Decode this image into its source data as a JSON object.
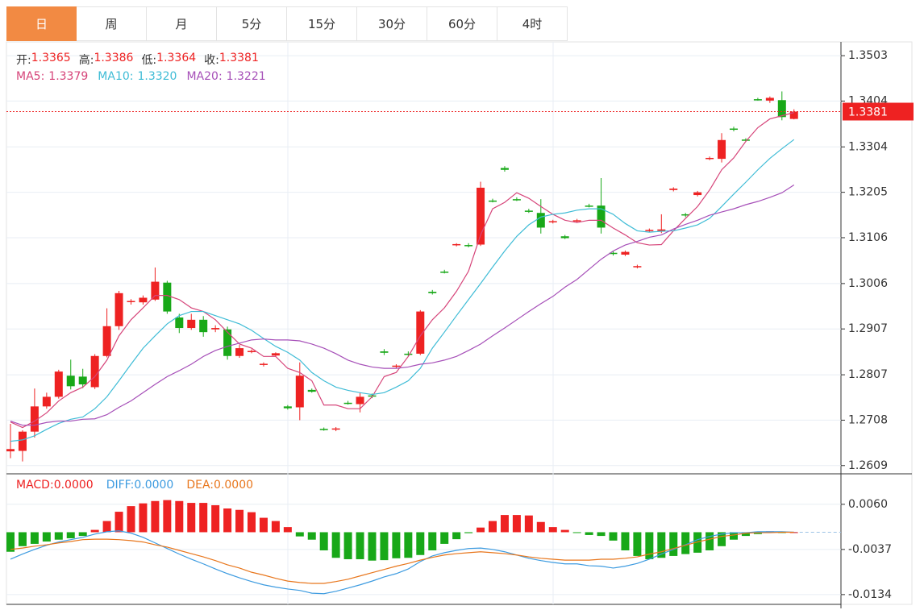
{
  "tabs": [
    "日",
    "周",
    "月",
    "5分",
    "15分",
    "30分",
    "60分",
    "4时"
  ],
  "active_tab": 0,
  "chart_data": [
    {
      "type": "candlestick",
      "quote": [
        {
          "label": "开:",
          "value": "1.3365"
        },
        {
          "label": "高:",
          "value": "1.3386"
        },
        {
          "label": "低:",
          "value": "1.3364"
        },
        {
          "label": "收:",
          "value": "1.3381"
        }
      ],
      "up_color": "#ee2222",
      "down_color": "#18a818",
      "open": [
        1.264,
        1.2641,
        1.2683,
        1.2738,
        1.2759,
        1.2805,
        1.2803,
        1.278,
        1.2848,
        1.2913,
        1.2966,
        1.2965,
        1.2971,
        1.3008,
        1.2932,
        1.2909,
        1.2927,
        1.2906,
        1.2906,
        1.2848,
        1.2857,
        1.2829,
        1.2849,
        1.2738,
        1.2736,
        1.2774,
        1.2689,
        1.2688,
        1.2746,
        1.2743,
        1.2762,
        1.2858,
        1.2826,
        1.2853,
        1.2853,
        1.2988,
        1.3032,
        1.309,
        1.309,
        1.3091,
        1.3187,
        1.3258,
        1.319,
        1.3165,
        1.316,
        1.314,
        1.3109,
        1.3142,
        1.3176,
        1.3176,
        1.3073,
        1.3069,
        1.3042,
        1.3121,
        1.3121,
        1.321,
        1.3157,
        1.3199,
        1.3278,
        1.3278,
        1.3344,
        1.332,
        1.3408,
        1.3405,
        1.3406,
        1.3365
      ],
      "high": [
        1.27,
        1.2686,
        1.2777,
        1.2768,
        1.2818,
        1.284,
        1.282,
        1.2852,
        1.2952,
        1.299,
        1.2972,
        1.298,
        1.3041,
        1.3012,
        1.294,
        1.294,
        1.2935,
        1.2915,
        1.2912,
        1.2872,
        1.2862,
        1.2834,
        1.2856,
        1.2741,
        1.2834,
        1.2777,
        1.2692,
        1.2693,
        1.275,
        1.2768,
        1.2766,
        1.2863,
        1.283,
        1.2858,
        1.2948,
        1.2992,
        1.3036,
        1.3094,
        1.3094,
        1.3228,
        1.3191,
        1.3262,
        1.3194,
        1.3169,
        1.319,
        1.3145,
        1.3112,
        1.3147,
        1.318,
        1.3236,
        1.3076,
        1.3078,
        1.3047,
        1.3126,
        1.3157,
        1.3216,
        1.316,
        1.3208,
        1.3283,
        1.3334,
        1.3348,
        1.3323,
        1.3411,
        1.3414,
        1.3425,
        1.3386
      ],
      "low": [
        1.2625,
        1.2618,
        1.267,
        1.2733,
        1.2755,
        1.2775,
        1.2778,
        1.2776,
        1.2845,
        1.2905,
        1.296,
        1.296,
        1.2968,
        1.294,
        1.2898,
        1.2905,
        1.289,
        1.29,
        1.284,
        1.2844,
        1.2854,
        1.2825,
        1.2846,
        1.2731,
        1.2708,
        1.2768,
        1.2685,
        1.2684,
        1.2742,
        1.2725,
        1.2756,
        1.285,
        1.2822,
        1.2848,
        1.285,
        1.2982,
        1.3028,
        1.3087,
        1.3085,
        1.3088,
        1.3183,
        1.325,
        1.3186,
        1.316,
        1.3115,
        1.3137,
        1.3103,
        1.3139,
        1.3172,
        1.3115,
        1.3067,
        1.3066,
        1.3039,
        1.3118,
        1.3116,
        1.3207,
        1.3151,
        1.3196,
        1.3275,
        1.327,
        1.3338,
        1.3315,
        1.3405,
        1.34,
        1.3362,
        1.3364
      ],
      "close": [
        1.2645,
        1.2683,
        1.2738,
        1.2759,
        1.2814,
        1.2782,
        1.2786,
        1.2848,
        1.2913,
        1.2985,
        1.2968,
        1.2975,
        1.301,
        1.2945,
        1.2909,
        1.2927,
        1.29,
        1.2909,
        1.2848,
        1.2865,
        1.2859,
        1.2831,
        1.2854,
        1.2734,
        1.2805,
        1.277,
        1.2687,
        1.269,
        1.2744,
        1.2759,
        1.276,
        1.2855,
        1.2827,
        1.2851,
        1.2945,
        1.2985,
        1.303,
        1.3092,
        1.3088,
        1.3215,
        1.3185,
        1.3254,
        1.3188,
        1.3163,
        1.3128,
        1.3142,
        1.3105,
        1.3144,
        1.3174,
        1.3128,
        1.3071,
        1.3075,
        1.3044,
        1.3123,
        1.3124,
        1.3213,
        1.3155,
        1.3205,
        1.328,
        1.3319,
        1.3342,
        1.3318,
        1.3406,
        1.3411,
        1.3369,
        1.3381
      ],
      "series": [
        {
          "name": "MA5:",
          "legend_value": "1.3379",
          "color": "#d6457a",
          "values": [
            1.2704,
            1.2692,
            1.2706,
            1.2724,
            1.275,
            1.2768,
            1.278,
            1.2803,
            1.2839,
            1.2892,
            1.2927,
            1.2953,
            1.298,
            1.298,
            1.2971,
            1.2953,
            1.2945,
            1.2927,
            1.29,
            1.2874,
            1.2865,
            1.2847,
            1.2847,
            1.2821,
            1.2812,
            1.2794,
            1.2741,
            1.2741,
            1.2733,
            1.2733,
            1.2759,
            1.2803,
            1.2812,
            1.2847,
            1.2892,
            1.2927,
            1.2953,
            1.2989,
            1.3033,
            1.3112,
            1.3169,
            1.3183,
            1.3204,
            1.3192,
            1.3174,
            1.3157,
            1.3144,
            1.3139,
            1.3144,
            1.3144,
            1.3127,
            1.3112,
            1.3095,
            1.309,
            1.3091,
            1.3121,
            1.3148,
            1.3174,
            1.321,
            1.3254,
            1.328,
            1.3316,
            1.3346,
            1.3365,
            1.3372,
            1.3379
          ]
        },
        {
          "name": "MA10:",
          "legend_value": "1.3320",
          "color": "#3fbcd6",
          "values": [
            1.2662,
            1.2665,
            1.2674,
            1.2688,
            1.2701,
            1.271,
            1.2715,
            1.2733,
            1.2759,
            1.2794,
            1.283,
            1.2865,
            1.2892,
            1.2918,
            1.2936,
            1.2945,
            1.2945,
            1.2936,
            1.2927,
            1.2918,
            1.2904,
            1.2886,
            1.2869,
            1.2856,
            1.2839,
            1.2812,
            1.2794,
            1.278,
            1.2773,
            1.2768,
            1.2764,
            1.2768,
            1.278,
            1.2794,
            1.2821,
            1.2865,
            1.29,
            1.2936,
            1.2971,
            1.3006,
            1.3042,
            1.3077,
            1.3109,
            1.3134,
            1.3151,
            1.3157,
            1.316,
            1.3166,
            1.3169,
            1.3169,
            1.3157,
            1.3137,
            1.3121,
            1.3118,
            1.312,
            1.3121,
            1.3127,
            1.3134,
            1.3148,
            1.3174,
            1.3201,
            1.3227,
            1.3254,
            1.3279,
            1.33,
            1.332
          ]
        },
        {
          "name": "MA20:",
          "legend_value": "1.3221",
          "color": "#a64fb8",
          "values": [
            1.2706,
            1.2697,
            1.2697,
            1.2703,
            1.2706,
            1.2706,
            1.271,
            1.2711,
            1.272,
            1.2736,
            1.275,
            1.2768,
            1.2786,
            1.2803,
            1.2816,
            1.283,
            1.2847,
            1.286,
            1.2869,
            1.2876,
            1.2883,
            1.2885,
            1.2883,
            1.2883,
            1.2881,
            1.2874,
            1.2865,
            1.2853,
            1.2839,
            1.283,
            1.2824,
            1.2821,
            1.2821,
            1.2824,
            1.283,
            1.2833,
            1.2839,
            1.2847,
            1.286,
            1.2874,
            1.2892,
            1.2909,
            1.2927,
            1.2945,
            1.2962,
            1.2978,
            1.2998,
            1.3015,
            1.3037,
            1.3059,
            1.3077,
            1.309,
            1.3098,
            1.3107,
            1.3112,
            1.3125,
            1.3135,
            1.3144,
            1.3155,
            1.3162,
            1.3169,
            1.3178,
            1.3185,
            1.3194,
            1.3204,
            1.3221
          ]
        }
      ],
      "last_price": 1.3381,
      "ylim": [
        1.2591,
        1.3533
      ],
      "yticks": [
        1.3503,
        1.3404,
        1.3304,
        1.3205,
        1.3106,
        1.3006,
        1.2907,
        1.2807,
        1.2708,
        1.2609
      ],
      "grid": true
    },
    {
      "type": "macd",
      "series": [
        {
          "name": "MACD:",
          "legend_value": "0.0000",
          "color": "#ee2222",
          "values": [
            -0.0042,
            -0.003,
            -0.0025,
            -0.002,
            -0.0016,
            -0.0013,
            -0.0008,
            0.0005,
            0.0024,
            0.0044,
            0.0056,
            0.0062,
            0.0067,
            0.0069,
            0.0067,
            0.0063,
            0.0063,
            0.0058,
            0.0051,
            0.0048,
            0.0043,
            0.0031,
            0.0024,
            0.0011,
            -0.0009,
            -0.0016,
            -0.0039,
            -0.0055,
            -0.0058,
            -0.0058,
            -0.0061,
            -0.006,
            -0.0056,
            -0.0055,
            -0.0049,
            -0.0039,
            -0.0025,
            -0.0015,
            -0.0002,
            0.001,
            0.0024,
            0.0037,
            0.0037,
            0.0036,
            0.0022,
            0.0011,
            0.0005,
            -0.0001,
            -0.0006,
            -0.0008,
            -0.0018,
            -0.0039,
            -0.0051,
            -0.0058,
            -0.0055,
            -0.0051,
            -0.0047,
            -0.0044,
            -0.0039,
            -0.003,
            -0.0016,
            -0.0008,
            -0.0004,
            0.0002,
            -0.0001,
            0
          ]
        },
        {
          "name": "DIFF:",
          "legend_value": "0.0000",
          "color": "#3d9be0",
          "values": [
            -0.0058,
            -0.0047,
            -0.0037,
            -0.0028,
            -0.0021,
            -0.0016,
            -0.0011,
            -0.0004,
            0.0001,
            0.0003,
            -0.0002,
            -0.0011,
            -0.0023,
            -0.0035,
            -0.0047,
            -0.0058,
            -0.0068,
            -0.0079,
            -0.0089,
            -0.0098,
            -0.0106,
            -0.0113,
            -0.0118,
            -0.0122,
            -0.0125,
            -0.0131,
            -0.0132,
            -0.0127,
            -0.012,
            -0.0113,
            -0.0105,
            -0.0096,
            -0.0089,
            -0.0079,
            -0.0063,
            -0.0051,
            -0.0044,
            -0.0039,
            -0.0035,
            -0.0034,
            -0.0037,
            -0.0042,
            -0.0049,
            -0.0056,
            -0.0061,
            -0.0065,
            -0.0068,
            -0.0068,
            -0.0072,
            -0.0073,
            -0.0077,
            -0.0073,
            -0.0067,
            -0.0058,
            -0.0047,
            -0.0037,
            -0.0027,
            -0.0016,
            -0.0009,
            -0.0004,
            -0.0001,
            -0.0001,
            0.0001,
            0.0001,
            0.0001,
            0
          ]
        },
        {
          "name": "DEA:",
          "legend_value": "0.0000",
          "color": "#e8761c",
          "values": [
            -0.0037,
            -0.0034,
            -0.003,
            -0.0027,
            -0.0023,
            -0.002,
            -0.0016,
            -0.0015,
            -0.0015,
            -0.0016,
            -0.0018,
            -0.0021,
            -0.0027,
            -0.0032,
            -0.0039,
            -0.0046,
            -0.0053,
            -0.0061,
            -0.007,
            -0.0077,
            -0.0086,
            -0.0092,
            -0.0099,
            -0.0105,
            -0.0108,
            -0.011,
            -0.011,
            -0.0106,
            -0.0101,
            -0.0094,
            -0.0087,
            -0.008,
            -0.0073,
            -0.0067,
            -0.006,
            -0.0054,
            -0.0049,
            -0.0046,
            -0.0044,
            -0.0042,
            -0.0044,
            -0.0046,
            -0.0049,
            -0.0053,
            -0.0056,
            -0.0058,
            -0.006,
            -0.006,
            -0.006,
            -0.0058,
            -0.0058,
            -0.0056,
            -0.0053,
            -0.0047,
            -0.0042,
            -0.0035,
            -0.0028,
            -0.0021,
            -0.0015,
            -0.0009,
            -0.0006,
            -0.0002,
            -0.0001,
            -0.0001,
            0,
            0
          ]
        }
      ],
      "up_color": "#ee2222",
      "down_color": "#18a818",
      "ylim": [
        -0.0155,
        0.0122
      ],
      "yticks": [
        {
          "value": 0.006,
          "label": "0.0060"
        },
        -0.0037,
        -0.0134
      ],
      "grid": true
    }
  ]
}
